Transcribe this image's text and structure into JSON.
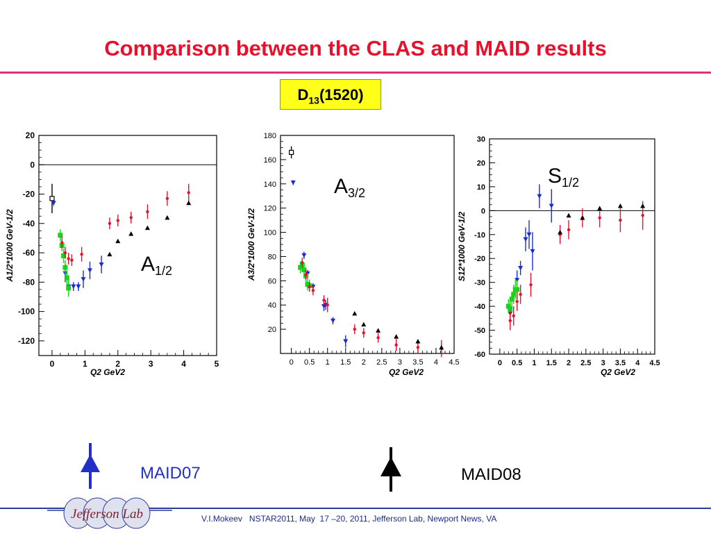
{
  "slide": {
    "title": "Comparison between the CLAS and MAID results",
    "resonance_main": "D",
    "resonance_sub": "13",
    "resonance_mass": "(1520)",
    "footer": "V.I.Mokeev   NSTAR2011, May  17 –20, 2011, Jefferson Lab, Newport News, VA",
    "logo_text": "Jefferson Lab",
    "colors": {
      "title": "#e8102d",
      "rule": "#e0307a",
      "badge": "#ffff1a",
      "maid07": "#2330c8",
      "maid08": "#000000"
    }
  },
  "legend": {
    "maid07": {
      "label": "MAID07",
      "color": "#2330c8"
    },
    "maid08": {
      "label": "MAID08",
      "color": "#000000"
    }
  },
  "chart_data": [
    {
      "type": "scatter",
      "label_main": "A",
      "label_sub": "1/2",
      "ylabel": "A1/2*1000 GeV-1/2",
      "xlabel": "Q2 GeV2",
      "xlim": [
        -0.4,
        5.0
      ],
      "ylim": [
        -130,
        20
      ],
      "xticks": [
        0,
        1,
        2,
        3,
        4,
        5
      ],
      "xtick_labels": [
        "0",
        "1",
        "2",
        "3",
        "4",
        "5"
      ],
      "yticks": [
        20,
        0,
        -20,
        -40,
        -60,
        -80,
        -100,
        -120
      ],
      "ytick_labels": [
        "20",
        "0",
        "-20",
        "-40",
        "-60",
        "-80",
        "-100",
        "-120"
      ],
      "zero_line": true,
      "series": [
        {
          "marker": "open-square",
          "color": "#000000",
          "points": [
            [
              0.0,
              -23,
              10
            ]
          ]
        },
        {
          "marker": "triangle-down",
          "color": "#1a2bd6",
          "points": [
            [
              0.05,
              -26,
              2
            ],
            [
              0.4,
              -74,
              6
            ],
            [
              0.5,
              -83,
              3
            ],
            [
              0.65,
              -83,
              3
            ],
            [
              0.8,
              -83,
              3
            ],
            [
              0.95,
              -78,
              6
            ],
            [
              1.15,
              -72,
              6
            ],
            [
              1.5,
              -68,
              6
            ]
          ]
        },
        {
          "marker": "square",
          "color": "#19d219",
          "points": [
            [
              0.25,
              -48,
              4
            ],
            [
              0.3,
              -55,
              4
            ],
            [
              0.35,
              -62,
              5
            ],
            [
              0.4,
              -70,
              5
            ],
            [
              0.45,
              -77,
              5
            ],
            [
              0.5,
              -84,
              6
            ]
          ]
        },
        {
          "marker": "dot",
          "color": "#e8102d",
          "points": [
            [
              0.3,
              -53,
              4
            ],
            [
              0.4,
              -60,
              4
            ],
            [
              0.5,
              -64,
              4
            ],
            [
              0.6,
              -65,
              4
            ],
            [
              0.9,
              -61,
              5
            ],
            [
              1.75,
              -40,
              4
            ],
            [
              2.0,
              -38,
              4
            ],
            [
              2.4,
              -36,
              4
            ],
            [
              2.9,
              -32,
              5
            ],
            [
              3.5,
              -23,
              5
            ],
            [
              4.15,
              -19,
              6
            ]
          ]
        },
        {
          "marker": "triangle-up",
          "color": "#000000",
          "points": [
            [
              1.75,
              -61,
              0
            ],
            [
              2.0,
              -52,
              0
            ],
            [
              2.4,
              -47,
              0
            ],
            [
              2.9,
              -43,
              0
            ],
            [
              3.5,
              -36,
              0
            ],
            [
              4.15,
              -26,
              0
            ]
          ]
        }
      ]
    },
    {
      "type": "scatter",
      "label_main": "A",
      "label_sub": "3/2",
      "ylabel": "A3/2*1000 GeV-1/2",
      "xlabel": "Q2 GeV2",
      "xlim": [
        -0.3,
        4.5
      ],
      "ylim": [
        0,
        180
      ],
      "xticks": [
        0,
        0.5,
        1,
        1.5,
        2,
        2.5,
        3,
        3.5,
        4,
        4.5
      ],
      "xtick_labels": [
        "0",
        "0.5",
        "1",
        "1.5",
        "2",
        "2.5",
        "3",
        "3.5",
        "4",
        "4.5"
      ],
      "yticks": [
        20,
        40,
        60,
        80,
        100,
        120,
        140,
        160,
        180
      ],
      "ytick_labels": [
        "20",
        "40",
        "60",
        "80",
        "100",
        "120",
        "140",
        "160",
        "180"
      ],
      "zero_line": false,
      "series": [
        {
          "marker": "open-square",
          "color": "#000000",
          "points": [
            [
              0.0,
              166,
              5
            ]
          ]
        },
        {
          "marker": "triangle-down",
          "color": "#1a2bd6",
          "points": [
            [
              0.05,
              141,
              2
            ],
            [
              0.35,
              81,
              3
            ],
            [
              0.45,
              66,
              3
            ],
            [
              0.6,
              55,
              3
            ],
            [
              0.9,
              39,
              4
            ],
            [
              0.95,
              40,
              4
            ],
            [
              1.15,
              27,
              3
            ],
            [
              1.5,
              10,
              5
            ]
          ]
        },
        {
          "marker": "square",
          "color": "#19d219",
          "points": [
            [
              0.25,
              71,
              5
            ],
            [
              0.3,
              73,
              5
            ],
            [
              0.35,
              69,
              5
            ],
            [
              0.4,
              64,
              5
            ],
            [
              0.45,
              57,
              5
            ],
            [
              0.5,
              56,
              5
            ]
          ]
        },
        {
          "marker": "dot",
          "color": "#e8102d",
          "points": [
            [
              0.3,
              75,
              4
            ],
            [
              0.4,
              65,
              4
            ],
            [
              0.5,
              55,
              4
            ],
            [
              0.6,
              52,
              4
            ],
            [
              0.9,
              44,
              4
            ],
            [
              1.0,
              40,
              6
            ],
            [
              1.75,
              20,
              4
            ],
            [
              2.0,
              17,
              4
            ],
            [
              2.4,
              13,
              4
            ],
            [
              2.9,
              7,
              5
            ],
            [
              3.5,
              5,
              5
            ],
            [
              4.15,
              4,
              7
            ]
          ]
        },
        {
          "marker": "triangle-up",
          "color": "#000000",
          "points": [
            [
              1.75,
              33,
              0
            ],
            [
              2.0,
              24,
              0
            ],
            [
              2.4,
              19,
              0
            ],
            [
              2.9,
              14,
              0
            ],
            [
              3.5,
              10,
              0
            ],
            [
              4.15,
              5,
              0
            ]
          ]
        }
      ]
    },
    {
      "type": "scatter",
      "label_main": "S",
      "label_sub": "1/2",
      "ylabel": "S12*1000 GeV-1/2",
      "xlabel": "Q2 GeV2",
      "xlim": [
        -0.3,
        4.5
      ],
      "ylim": [
        -60,
        30
      ],
      "xticks": [
        0,
        0.5,
        1,
        1.5,
        2,
        2.5,
        3,
        3.5,
        4,
        4.5
      ],
      "xtick_labels": [
        "0",
        "0.5",
        "1",
        "1.5",
        "2",
        "2.5",
        "3",
        "3.5",
        "4",
        "4.5"
      ],
      "yticks": [
        30,
        20,
        10,
        0,
        -10,
        -20,
        -30,
        -40,
        -50,
        -60
      ],
      "ytick_labels": [
        "30",
        "20",
        "10",
        "0",
        "-10",
        "-20",
        "-30",
        "-40",
        "-50",
        "-60"
      ],
      "zero_line": true,
      "series": [
        {
          "marker": "triangle-down",
          "color": "#1a2bd6",
          "points": [
            [
              0.3,
              -43,
              3
            ],
            [
              0.5,
              -29,
              4
            ],
            [
              0.6,
              -24,
              3
            ],
            [
              0.75,
              -12,
              5
            ],
            [
              0.85,
              -10,
              6
            ],
            [
              0.95,
              -17,
              8
            ],
            [
              1.15,
              6,
              5
            ],
            [
              1.5,
              2,
              7
            ]
          ]
        },
        {
          "marker": "square",
          "color": "#19d219",
          "points": [
            [
              0.25,
              -40,
              3
            ],
            [
              0.3,
              -41,
              3
            ],
            [
              0.35,
              -37,
              3
            ],
            [
              0.4,
              -35,
              4
            ],
            [
              0.45,
              -33,
              4
            ],
            [
              0.5,
              -33,
              4
            ]
          ]
        },
        {
          "marker": "dot",
          "color": "#e8102d",
          "points": [
            [
              0.3,
              -46,
              4
            ],
            [
              0.4,
              -44,
              4
            ],
            [
              0.5,
              -38,
              4
            ],
            [
              0.6,
              -35,
              4
            ],
            [
              0.9,
              -31,
              5
            ],
            [
              1.75,
              -10,
              4
            ],
            [
              2.0,
              -8,
              4
            ],
            [
              2.4,
              -3,
              4
            ],
            [
              2.9,
              -3,
              4
            ],
            [
              3.5,
              -4,
              5
            ],
            [
              4.15,
              -2,
              6
            ]
          ]
        },
        {
          "marker": "triangle-up",
          "color": "#000000",
          "points": [
            [
              1.75,
              -9,
              0
            ],
            [
              2.0,
              -2,
              0
            ],
            [
              2.4,
              -3,
              0
            ],
            [
              2.9,
              1,
              0
            ],
            [
              3.5,
              2,
              0
            ],
            [
              4.15,
              2,
              0
            ]
          ]
        }
      ]
    }
  ]
}
